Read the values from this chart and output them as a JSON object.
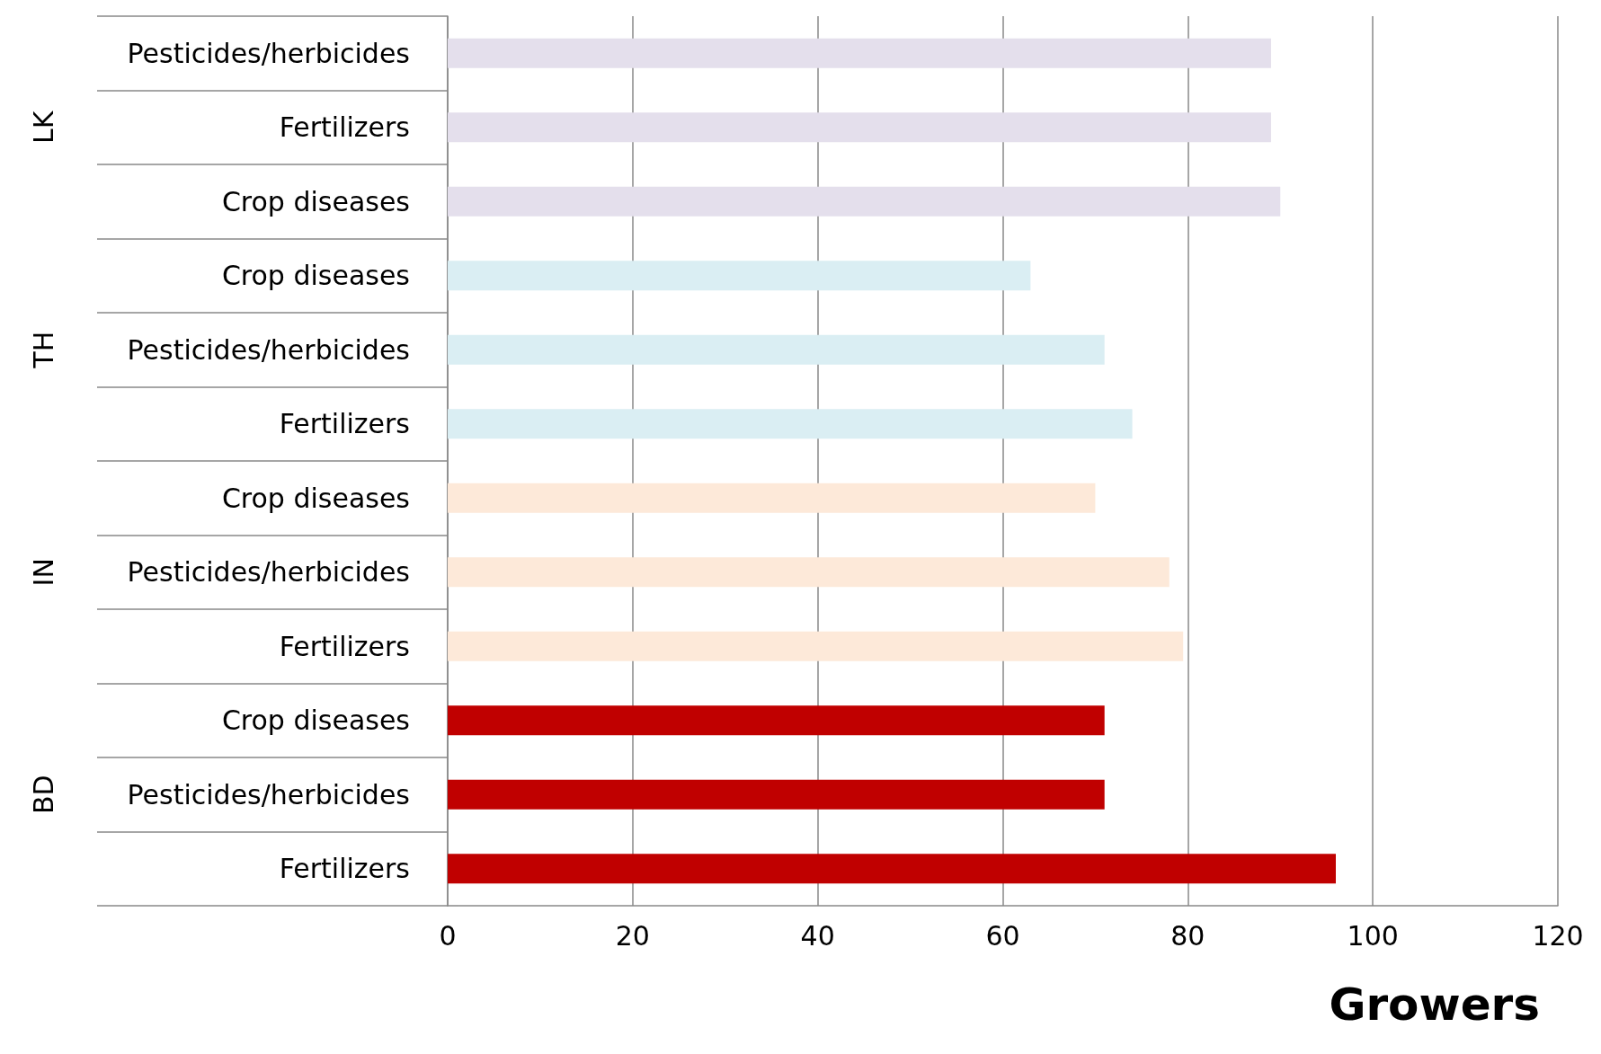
{
  "chart_data": {
    "type": "bar",
    "orientation": "horizontal",
    "xlabel": "Growers",
    "categories": [
      "Pesticides/herbicides",
      "Fertilizers",
      "Crop diseases",
      "Crop diseases",
      "Pesticides/herbicides",
      "Fertilizers",
      "Crop diseases",
      "Pesticides/herbicides",
      "Fertilizers",
      "Crop diseases",
      "Pesticides/herbicides",
      "Fertilizers"
    ],
    "values": [
      89,
      89,
      90,
      63,
      71,
      74,
      70,
      78,
      79.5,
      71,
      71,
      96
    ],
    "colors": [
      "#e4dfec",
      "#e4dfec",
      "#e4dfec",
      "#daeef3",
      "#daeef3",
      "#daeef3",
      "#fde9d9",
      "#fde9d9",
      "#fde9d9",
      "#c00000",
      "#c00000",
      "#c00000"
    ],
    "annotations": [
      "LK",
      "TH",
      "IN",
      "BD"
    ],
    "xlim": [
      0,
      120
    ],
    "xticks": [
      0,
      20,
      40,
      60,
      80,
      100,
      120
    ],
    "grid": "x"
  }
}
